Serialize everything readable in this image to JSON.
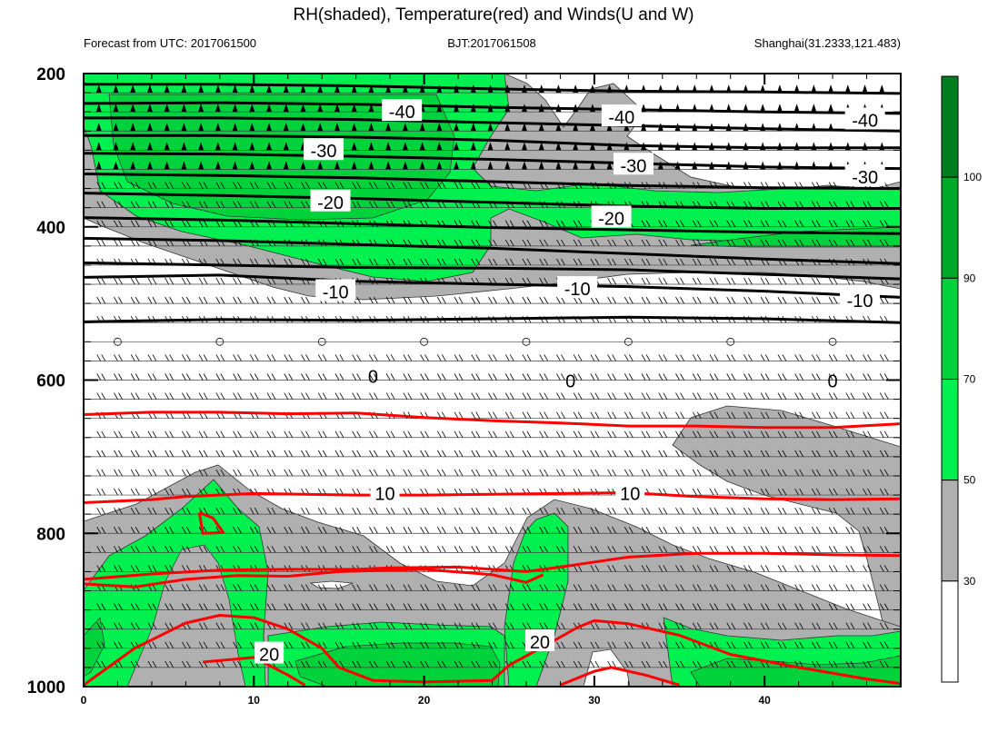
{
  "title": "RH(shaded), Temperature(red) and Winds(U and W)",
  "left_subtitle": "Forecast from UTC: 2017061500",
  "center_subtitle": "BJT:2017061508",
  "right_subtitle": "Shanghai(31.2333,121.483)",
  "colors": {
    "rh_lt30": "#ffffff",
    "rh_30_50": "#b0b0b0",
    "rh_50_70": "#00f050",
    "rh_70_90": "#00d23c",
    "rh_90_100": "#00aa28",
    "rh_gt100": "#007d1e",
    "temperature": "#ff0000",
    "temperature_lt0": "#000000"
  },
  "chart_data": {
    "type": "heatmap",
    "description_fields": "Time-pressure cross section: RH shaded, temperature contours, wind barbs",
    "x_ticks": [
      "0",
      "10",
      "20",
      "30",
      "40"
    ],
    "x_range": [
      0,
      48
    ],
    "y_ticks": [
      "200",
      "400",
      "600",
      "800",
      "1000"
    ],
    "y_range": [
      200,
      1000
    ],
    "y_inverted": true,
    "colorbar": {
      "levels": [
        30,
        50,
        70,
        90,
        100
      ],
      "labels": [
        "30",
        "50",
        "70",
        "90",
        "100"
      ]
    },
    "temperature_contour_labels": [
      {
        "text": "-40",
        "x": 18.7,
        "y": 250
      },
      {
        "text": "-40",
        "x": 31.6,
        "y": 257
      },
      {
        "text": "-40",
        "x": 45.9,
        "y": 261
      },
      {
        "text": "-30",
        "x": 14.1,
        "y": 301
      },
      {
        "text": "-30",
        "x": 32.3,
        "y": 320
      },
      {
        "text": "-30",
        "x": 45.9,
        "y": 335
      },
      {
        "text": "-20",
        "x": 14.5,
        "y": 368
      },
      {
        "text": "-20",
        "x": 31.0,
        "y": 389
      },
      {
        "text": "-10",
        "x": 14.8,
        "y": 485
      },
      {
        "text": "-10",
        "x": 29.0,
        "y": 481
      },
      {
        "text": "-10",
        "x": 45.6,
        "y": 496
      },
      {
        "text": "0",
        "x": 17.0,
        "y": 595
      },
      {
        "text": "0",
        "x": 28.6,
        "y": 601
      },
      {
        "text": "0",
        "x": 44.0,
        "y": 601
      },
      {
        "text": "10",
        "x": 17.7,
        "y": 748
      },
      {
        "text": "10",
        "x": 32.1,
        "y": 748
      },
      {
        "text": "20",
        "x": 10.9,
        "y": 958
      },
      {
        "text": "20",
        "x": 26.8,
        "y": 942
      }
    ],
    "temperature_contours": [
      {
        "value": -40,
        "points": [
          [
            0,
            214
          ],
          [
            8,
            214
          ],
          [
            16,
            216
          ],
          [
            24,
            220
          ],
          [
            32,
            223
          ],
          [
            40,
            224
          ],
          [
            48,
            226
          ]
        ]
      },
      {
        "value": -40,
        "points": [
          [
            0,
            239
          ],
          [
            8,
            238
          ],
          [
            16,
            240
          ],
          [
            24,
            244
          ],
          [
            32,
            247
          ],
          [
            40,
            250
          ],
          [
            48,
            252
          ]
        ]
      },
      {
        "value": -40,
        "points": [
          [
            0,
            258
          ],
          [
            8,
            258
          ],
          [
            16,
            260
          ],
          [
            24,
            264
          ],
          [
            32,
            268
          ],
          [
            40,
            272
          ],
          [
            48,
            275
          ]
        ]
      },
      {
        "value": -30,
        "points": [
          [
            0,
            281
          ],
          [
            8,
            281
          ],
          [
            16,
            283
          ],
          [
            24,
            287
          ],
          [
            32,
            294
          ],
          [
            40,
            297
          ],
          [
            48,
            297
          ]
        ]
      },
      {
        "value": -30,
        "points": [
          [
            0,
            304
          ],
          [
            8,
            305
          ],
          [
            16,
            308
          ],
          [
            24,
            312
          ],
          [
            32,
            317
          ],
          [
            40,
            322
          ],
          [
            48,
            324
          ]
        ]
      },
      {
        "value": -30,
        "points": [
          [
            0,
            331
          ],
          [
            8,
            333
          ],
          [
            16,
            336
          ],
          [
            24,
            341
          ],
          [
            32,
            346
          ],
          [
            40,
            349
          ],
          [
            48,
            350
          ]
        ]
      },
      {
        "value": -20,
        "points": [
          [
            0,
            356
          ],
          [
            8,
            359
          ],
          [
            16,
            363
          ],
          [
            24,
            368
          ],
          [
            32,
            373
          ],
          [
            40,
            376
          ],
          [
            48,
            376
          ]
        ]
      },
      {
        "value": -20,
        "points": [
          [
            0,
            388
          ],
          [
            8,
            391
          ],
          [
            16,
            396
          ],
          [
            24,
            401
          ],
          [
            32,
            404
          ],
          [
            40,
            407
          ],
          [
            48,
            409
          ]
        ]
      },
      {
        "value": -20,
        "points": [
          [
            0,
            415
          ],
          [
            8,
            418
          ],
          [
            16,
            423
          ],
          [
            24,
            428
          ],
          [
            32,
            435
          ],
          [
            40,
            442
          ],
          [
            48,
            448
          ]
        ]
      },
      {
        "value": -20,
        "points": [
          [
            0,
            447
          ],
          [
            8,
            450
          ],
          [
            16,
            453
          ],
          [
            24,
            454
          ],
          [
            32,
            456
          ],
          [
            40,
            462
          ],
          [
            48,
            468
          ]
        ]
      },
      {
        "value": -10,
        "points": [
          [
            0,
            466
          ],
          [
            8,
            463
          ],
          [
            16,
            471
          ],
          [
            24,
            475
          ],
          [
            32,
            478
          ],
          [
            40,
            484
          ],
          [
            48,
            492
          ]
        ]
      },
      {
        "value": -10,
        "points": [
          [
            0,
            524
          ],
          [
            8,
            521
          ],
          [
            16,
            522
          ],
          [
            24,
            520
          ],
          [
            32,
            518
          ],
          [
            40,
            520
          ],
          [
            48,
            525
          ]
        ]
      },
      {
        "value": 10,
        "points": [
          [
            0,
            645
          ],
          [
            4,
            642
          ],
          [
            8,
            642
          ],
          [
            12,
            644
          ],
          [
            16,
            643
          ],
          [
            20,
            649
          ],
          [
            24,
            653
          ],
          [
            28,
            656
          ],
          [
            32,
            660
          ],
          [
            36,
            660
          ],
          [
            40,
            662
          ],
          [
            44,
            662
          ],
          [
            48,
            657
          ]
        ]
      },
      {
        "value": 10,
        "points": [
          [
            0,
            760
          ],
          [
            4,
            756
          ],
          [
            6,
            752
          ],
          [
            10,
            748
          ],
          [
            16,
            750
          ],
          [
            20,
            750
          ],
          [
            24,
            749
          ],
          [
            28,
            748
          ],
          [
            32,
            747
          ],
          [
            36,
            752
          ],
          [
            40,
            755
          ],
          [
            44,
            756
          ],
          [
            48,
            755
          ]
        ]
      },
      {
        "value": 20,
        "points": [
          [
            0,
            860
          ],
          [
            4,
            853
          ],
          [
            8,
            848
          ],
          [
            12,
            847
          ],
          [
            16,
            847
          ],
          [
            18,
            845
          ],
          [
            22,
            844
          ],
          [
            24,
            847
          ],
          [
            26,
            850
          ],
          [
            28,
            844
          ],
          [
            32,
            831
          ],
          [
            36,
            826
          ],
          [
            40,
            826
          ],
          [
            44,
            828
          ],
          [
            48,
            829
          ]
        ]
      },
      {
        "value": 20,
        "points": [
          [
            0,
            866
          ],
          [
            3,
            870
          ],
          [
            6,
            860
          ],
          [
            9,
            855
          ],
          [
            12,
            856
          ],
          [
            15,
            850
          ],
          [
            20,
            847
          ],
          [
            24,
            854
          ],
          [
            26,
            864
          ],
          [
            27,
            854
          ]
        ]
      },
      {
        "value": 20,
        "points": [
          [
            0,
            998
          ],
          [
            3,
            950
          ],
          [
            6,
            917
          ],
          [
            8,
            907
          ],
          [
            10,
            910
          ],
          [
            12,
            925
          ],
          [
            14,
            950
          ],
          [
            15,
            975
          ],
          [
            17,
            992
          ],
          [
            20,
            994
          ],
          [
            22,
            993
          ],
          [
            24,
            992
          ],
          [
            25,
            972
          ],
          [
            27,
            948
          ],
          [
            29,
            923
          ],
          [
            30,
            914
          ],
          [
            32,
            918
          ],
          [
            35,
            933
          ],
          [
            38,
            958
          ],
          [
            42,
            975
          ],
          [
            46,
            990
          ],
          [
            48,
            996
          ]
        ]
      },
      {
        "value": 20,
        "points": [
          [
            7,
            968
          ],
          [
            10,
            962
          ],
          [
            12,
            985
          ],
          [
            13,
            998
          ]
        ]
      },
      {
        "value": 20,
        "points": [
          [
            28,
            998
          ],
          [
            30,
            980
          ],
          [
            31,
            975
          ],
          [
            33,
            985
          ],
          [
            35,
            998
          ]
        ]
      },
      {
        "value": 20,
        "points": [
          [
            6.8,
            773
          ],
          [
            7.6,
            780
          ],
          [
            8.2,
            799
          ],
          [
            7.0,
            800
          ],
          [
            6.8,
            773
          ]
        ]
      }
    ]
  }
}
